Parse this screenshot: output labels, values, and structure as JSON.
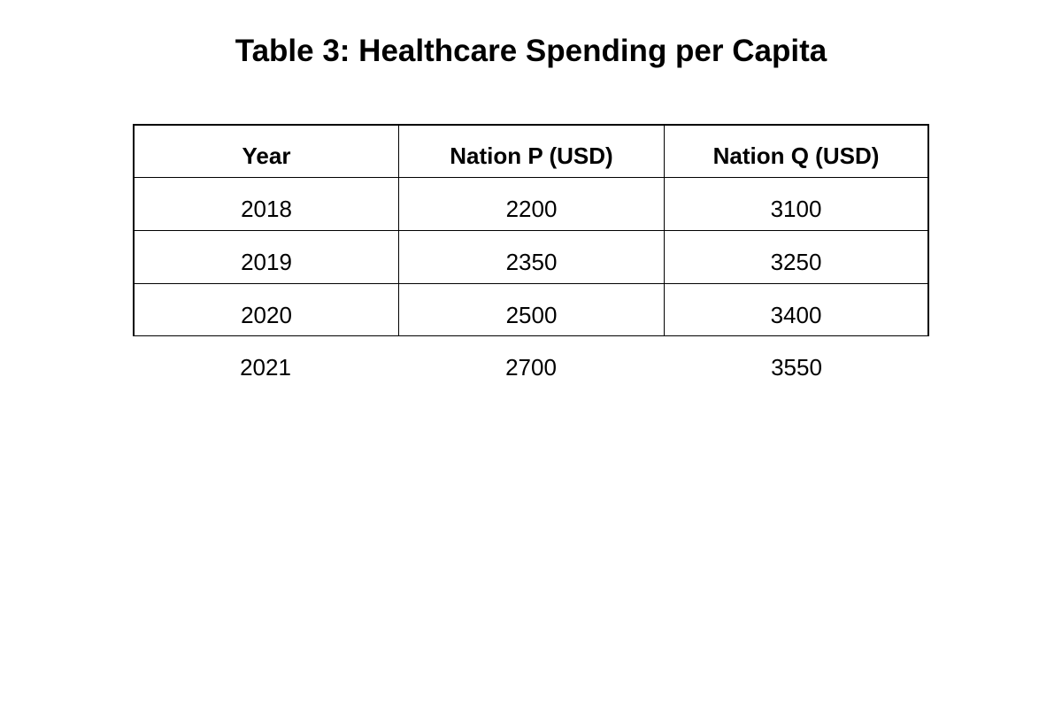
{
  "title": "Table 3: Healthcare Spending per Capita",
  "table": {
    "headers": [
      "Year",
      "Nation P (USD)",
      "Nation Q (USD)"
    ],
    "rows": [
      [
        "2018",
        "2200",
        "3100"
      ],
      [
        "2019",
        "2350",
        "3250"
      ],
      [
        "2020",
        "2500",
        "3400"
      ],
      [
        "2021",
        "2700",
        "3550"
      ]
    ]
  }
}
